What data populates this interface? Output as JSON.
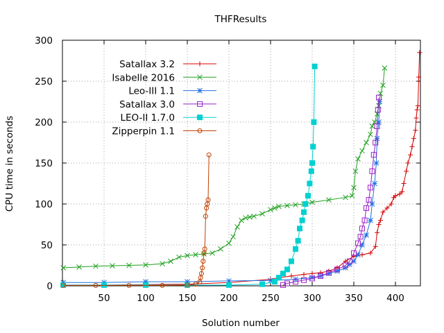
{
  "chart_data": {
    "type": "line",
    "title": "THFResults",
    "xlabel": "Solution number",
    "ylabel": "CPU time in seconds",
    "xlim": [
      0,
      430
    ],
    "ylim": [
      0,
      300
    ],
    "xticks": [
      50,
      100,
      150,
      200,
      250,
      300,
      350,
      400
    ],
    "yticks": [
      0,
      50,
      100,
      150,
      200,
      250,
      300
    ],
    "grid": true,
    "legend_position": "top-left",
    "series": [
      {
        "name": "Satallax 3.2",
        "color": "#d40000",
        "marker": "plus",
        "x": [
          1,
          50,
          100,
          150,
          200,
          250,
          260,
          275,
          290,
          300,
          310,
          320,
          330,
          340,
          350,
          360,
          370,
          376,
          378,
          380,
          382,
          385,
          390,
          395,
          398,
          400,
          405,
          408,
          410,
          413,
          415,
          418,
          420,
          422,
          424,
          425,
          426,
          427,
          428,
          429
        ],
        "y": [
          1,
          1,
          1.5,
          2,
          4,
          8,
          10,
          12,
          14,
          15,
          16,
          18,
          22,
          30,
          36,
          38,
          40,
          48,
          65,
          75,
          80,
          90,
          95,
          100,
          108,
          110,
          112,
          115,
          125,
          140,
          150,
          160,
          170,
          180,
          190,
          205,
          215,
          220,
          255,
          285
        ]
      },
      {
        "name": "Isabelle 2016",
        "color": "#20a020",
        "marker": "x",
        "x": [
          1,
          20,
          40,
          60,
          80,
          100,
          120,
          130,
          140,
          150,
          160,
          170,
          180,
          190,
          200,
          205,
          210,
          215,
          220,
          225,
          230,
          240,
          250,
          255,
          260,
          270,
          280,
          290,
          300,
          320,
          340,
          348,
          350,
          352,
          355,
          360,
          365,
          370,
          372,
          375,
          378,
          380,
          382,
          385,
          387
        ],
        "y": [
          22,
          23,
          24,
          24.5,
          25,
          25.5,
          27,
          30,
          35,
          37,
          38,
          39,
          40,
          45,
          52,
          60,
          72,
          80,
          83,
          84,
          85,
          88,
          93,
          95,
          97,
          98,
          99,
          100,
          102,
          105,
          108,
          110,
          120,
          140,
          155,
          165,
          175,
          185,
          195,
          200,
          210,
          220,
          235,
          245,
          266
        ]
      },
      {
        "name": "Leo-III 1.1",
        "color": "#1f6fe0",
        "marker": "asterisk",
        "x": [
          1,
          50,
          100,
          150,
          200,
          250,
          280,
          300,
          310,
          320,
          330,
          340,
          345,
          350,
          355,
          360,
          365,
          370,
          372,
          375,
          377,
          378,
          380,
          381
        ],
        "y": [
          4,
          4,
          5,
          5,
          6,
          6.5,
          8,
          10,
          12,
          15,
          18,
          22,
          26,
          30,
          38,
          50,
          62,
          80,
          100,
          125,
          150,
          180,
          200,
          225
        ]
      },
      {
        "name": "Satallax 3.0",
        "color": "#9a20c8",
        "marker": "square",
        "x": [
          265,
          270,
          280,
          290,
          300,
          310,
          320,
          330,
          340,
          345,
          350,
          355,
          358,
          360,
          363,
          365,
          368,
          370,
          372,
          374,
          376,
          378,
          379,
          380
        ],
        "y": [
          1,
          3,
          5,
          7,
          9,
          12,
          16,
          20,
          25,
          30,
          40,
          52,
          60,
          70,
          80,
          95,
          105,
          120,
          140,
          160,
          175,
          195,
          215,
          230
        ]
      },
      {
        "name": "LEO-II 1.7.0",
        "color": "#00d0d0",
        "marker": "filled-square",
        "x": [
          1,
          50,
          100,
          150,
          200,
          240,
          255,
          260,
          265,
          270,
          275,
          280,
          283,
          285,
          288,
          290,
          292,
          295,
          297,
          299,
          300,
          301,
          302,
          303
        ],
        "y": [
          1,
          1,
          1,
          1,
          1,
          2,
          5,
          10,
          15,
          20,
          30,
          45,
          55,
          70,
          80,
          90,
          100,
          110,
          125,
          140,
          150,
          170,
          200,
          268
        ]
      },
      {
        "name": "Zipperpin 1.1",
        "color": "#c04000",
        "marker": "circle",
        "x": [
          1,
          40,
          80,
          120,
          150,
          160,
          165,
          166,
          167,
          168,
          169,
          170,
          171,
          172,
          173,
          174,
          175,
          176
        ],
        "y": [
          0.5,
          0.5,
          0.5,
          0.5,
          1,
          2,
          5,
          10,
          15,
          22,
          30,
          40,
          45,
          85,
          95,
          100,
          105,
          160
        ]
      }
    ]
  }
}
